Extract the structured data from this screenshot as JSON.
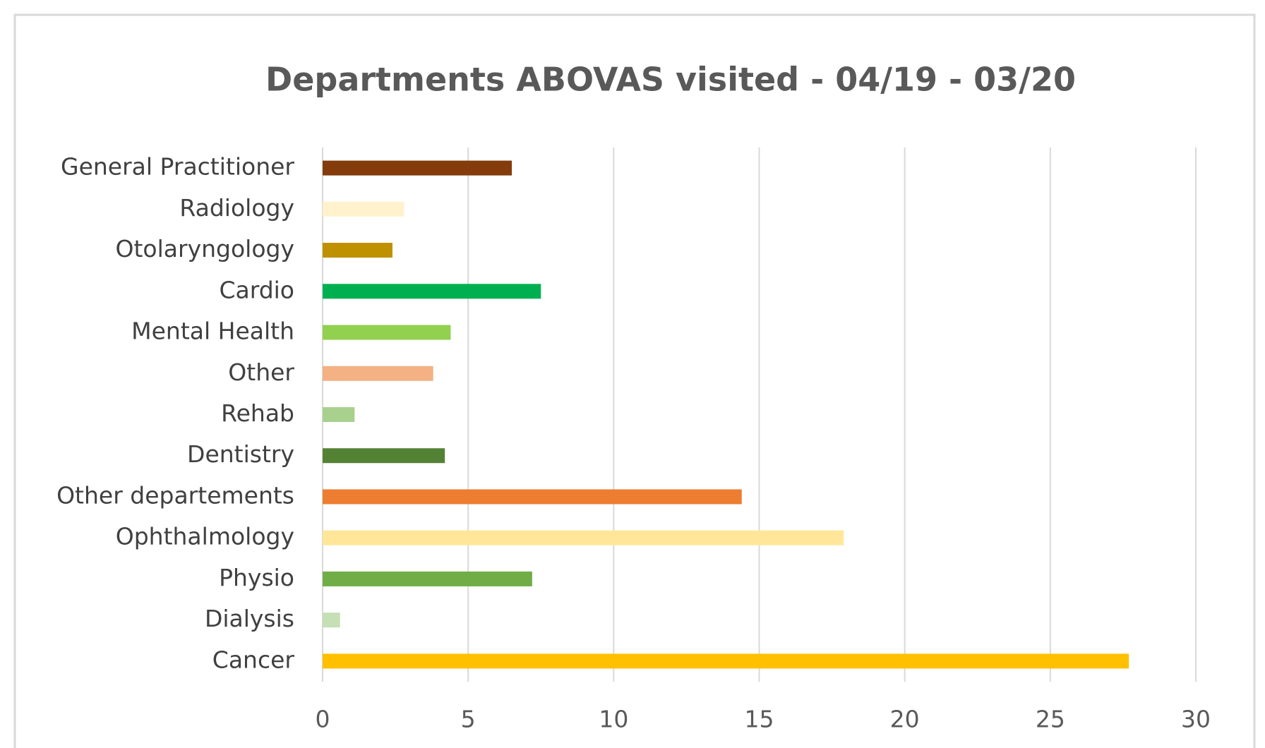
{
  "chart_data": {
    "type": "bar",
    "orientation": "horizontal",
    "title": "Departments ABOVAS visited - 04/19 - 03/20",
    "categories": [
      "General Practitioner",
      "Radiology",
      "Otolaryngology",
      "Cardio",
      "Mental Health",
      "Other",
      "Rehab",
      "Dentistry",
      "Other departements",
      "Ophthalmology",
      "Physio",
      "Dialysis",
      "Cancer"
    ],
    "values": [
      6.5,
      2.8,
      2.4,
      7.5,
      4.4,
      3.8,
      1.1,
      4.2,
      14.4,
      17.9,
      7.2,
      0.6,
      27.7
    ],
    "colors": [
      "#843c0c",
      "#fff2cc",
      "#bf9000",
      "#00b050",
      "#92d050",
      "#f4b183",
      "#a9d18e",
      "#548235",
      "#ed7d31",
      "#ffe699",
      "#70ad47",
      "#c5e0b4",
      "#ffc000"
    ],
    "xlim": [
      0,
      30
    ],
    "xticks": [
      0,
      5,
      10,
      15,
      20,
      25,
      30
    ],
    "grid": true
  }
}
